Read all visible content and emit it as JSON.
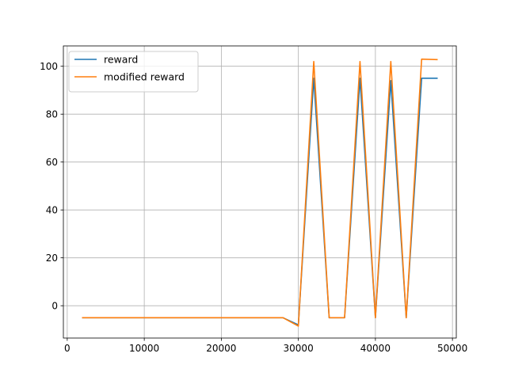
{
  "chart_data": {
    "type": "line",
    "title": "",
    "xlabel": "",
    "ylabel": "",
    "xlim": [
      -500,
      50500
    ],
    "ylim": [
      -13.5,
      108.5
    ],
    "grid": true,
    "legend": {
      "placement": "top-left",
      "entries": [
        "reward",
        "modified reward"
      ]
    },
    "x_ticks": [
      0,
      10000,
      20000,
      30000,
      40000,
      50000
    ],
    "x_tick_labels": [
      "0",
      "10000",
      "20000",
      "30000",
      "40000",
      "50000"
    ],
    "y_ticks": [
      0,
      20,
      40,
      60,
      80,
      100
    ],
    "y_tick_labels": [
      "0",
      "20",
      "40",
      "60",
      "80",
      "100"
    ],
    "x": [
      2000,
      4000,
      6000,
      8000,
      10000,
      12000,
      14000,
      16000,
      18000,
      20000,
      22000,
      24000,
      26000,
      28000,
      30000,
      32000,
      34000,
      36000,
      38000,
      40000,
      42000,
      44000,
      46000,
      48000
    ],
    "series": [
      {
        "name": "reward",
        "color": "#1f77b4",
        "values": [
          -5,
          -5,
          -5,
          -5,
          -5,
          -5,
          -5,
          -5,
          -5,
          -5,
          -5,
          -5,
          -5,
          -5,
          -8,
          95,
          -5,
          -5,
          95,
          -5,
          94,
          -5,
          95,
          95
        ]
      },
      {
        "name": "modified reward",
        "color": "#ff7f0e",
        "values": [
          -5,
          -5,
          -5,
          -5,
          -5,
          -5,
          -5,
          -5,
          -5,
          -5,
          -5,
          -5,
          -5,
          -5,
          -8.5,
          102,
          -5,
          -5,
          102,
          -5,
          102,
          -5,
          103,
          102.8
        ]
      }
    ]
  }
}
